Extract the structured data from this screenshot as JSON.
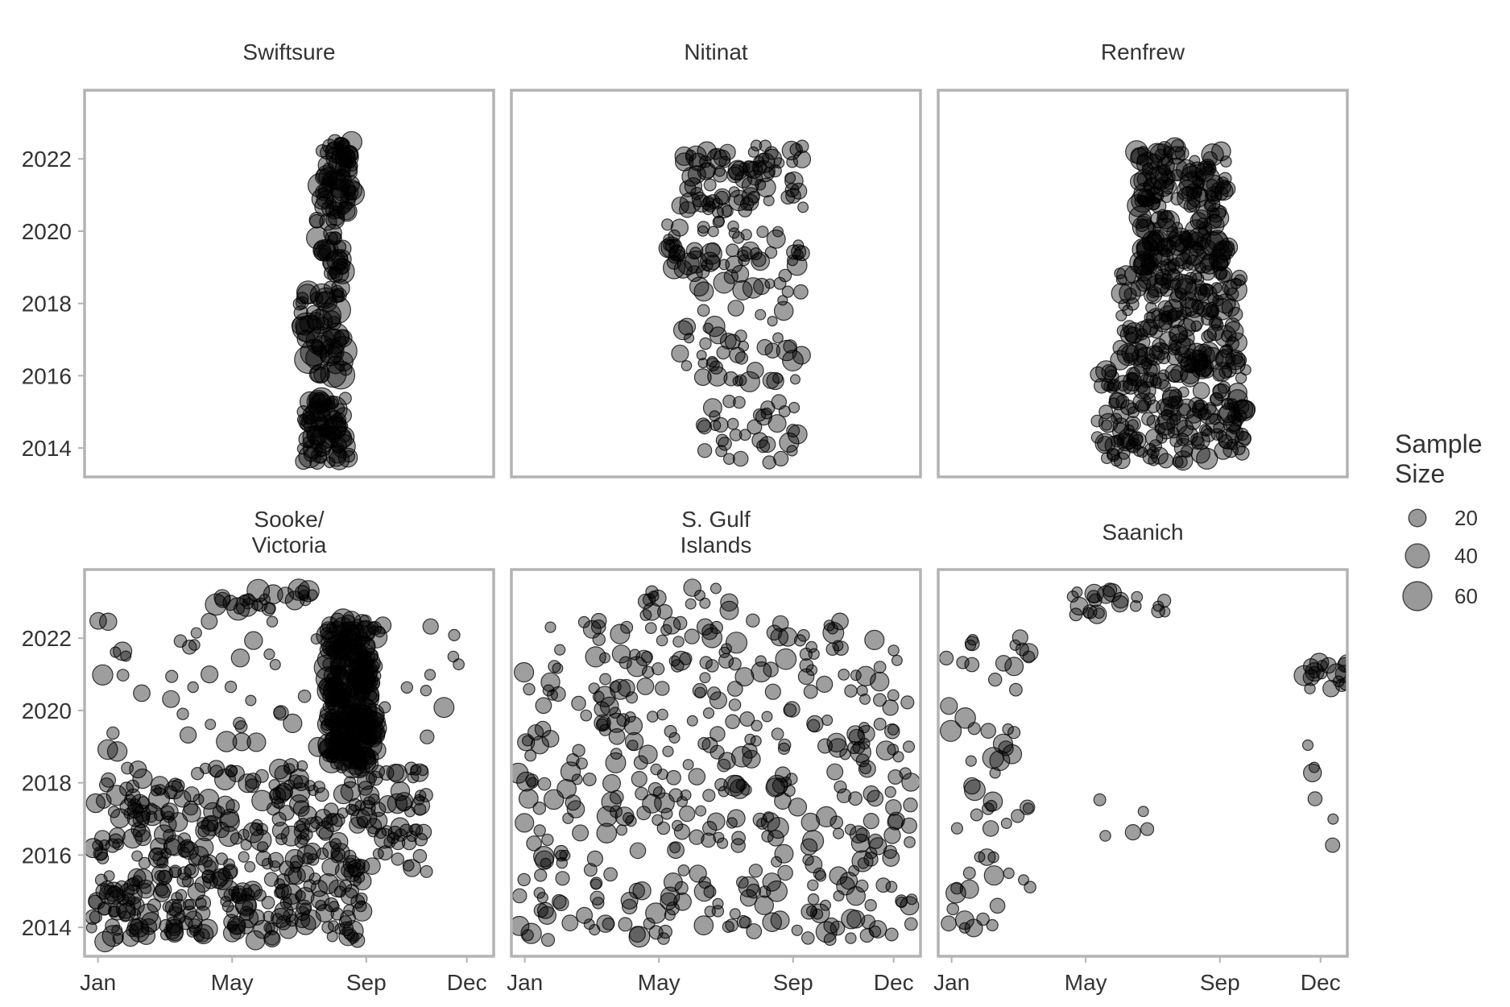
{
  "chart_data": {
    "type": "scatter",
    "x_ticks": [
      "Jan",
      "May",
      "Sep",
      "Dec"
    ],
    "x_tick_months": [
      1,
      5,
      9,
      12
    ],
    "x_range_months": [
      0.6,
      12.8
    ],
    "y_ticks": [
      "2014",
      "2016",
      "2018",
      "2020",
      "2022"
    ],
    "y_range": [
      2013.2,
      2023.9
    ],
    "grid": false,
    "legend": {
      "title_lines": [
        "Sample",
        "Size"
      ],
      "entries": [
        {
          "label": "20",
          "size": 20
        },
        {
          "label": "40",
          "size": 40
        },
        {
          "label": "60",
          "size": 60
        }
      ],
      "position": "right"
    },
    "point_color": "#000000",
    "panels": [
      {
        "title_lines": [
          "Swiftsure"
        ],
        "clusters": [
          {
            "x": [
              7.1,
              8.5
            ],
            "y": [
              2013.6,
              2015.4
            ],
            "n": 70,
            "s": [
              6,
              45
            ]
          },
          {
            "x": [
              7.0,
              8.5
            ],
            "y": [
              2015.9,
              2018.6
            ],
            "n": 55,
            "s": [
              8,
              60
            ]
          },
          {
            "x": [
              7.5,
              8.3
            ],
            "y": [
              2018.8,
              2020.4
            ],
            "n": 30,
            "s": [
              8,
              45
            ]
          },
          {
            "x": [
              7.6,
              8.6
            ],
            "y": [
              2020.5,
              2022.5
            ],
            "n": 75,
            "s": [
              6,
              40
            ]
          }
        ]
      },
      {
        "title_lines": [
          "Nitinat"
        ],
        "clusters": [
          {
            "x": [
              6.3,
              9.3
            ],
            "y": [
              2013.6,
              2015.3
            ],
            "n": 35,
            "s": [
              6,
              25
            ]
          },
          {
            "x": [
              5.6,
              9.3
            ],
            "y": [
              2015.8,
              2018.6
            ],
            "n": 55,
            "s": [
              5,
              30
            ]
          },
          {
            "x": [
              5.2,
              9.3
            ],
            "y": [
              2018.7,
              2020.3
            ],
            "n": 60,
            "s": [
              6,
              35
            ]
          },
          {
            "x": [
              5.6,
              9.3
            ],
            "y": [
              2020.5,
              2022.4
            ],
            "n": 85,
            "s": [
              6,
              30
            ]
          }
        ]
      },
      {
        "title_lines": [
          "Renfrew"
        ],
        "clusters": [
          {
            "x": [
              5.3,
              9.8
            ],
            "y": [
              2013.6,
              2016.2
            ],
            "n": 190,
            "s": [
              6,
              30
            ]
          },
          {
            "x": [
              6.0,
              9.6
            ],
            "y": [
              2016.2,
              2019.0
            ],
            "n": 170,
            "s": [
              6,
              35
            ]
          },
          {
            "x": [
              6.5,
              9.3
            ],
            "y": [
              2019.0,
              2022.4
            ],
            "n": 190,
            "s": [
              6,
              40
            ]
          }
        ]
      },
      {
        "title_lines": [
          "Sooke/",
          "Victoria"
        ],
        "clusters": [
          {
            "x": [
              0.8,
              9.2
            ],
            "y": [
              2013.6,
              2015.5
            ],
            "n": 200,
            "s": [
              6,
              30
            ]
          },
          {
            "x": [
              0.8,
              10.8
            ],
            "y": [
              2015.5,
              2018.5
            ],
            "n": 280,
            "s": [
              6,
              30
            ]
          },
          {
            "x": [
              7.8,
              9.3
            ],
            "y": [
              2018.5,
              2022.5
            ],
            "n": 260,
            "s": [
              6,
              45
            ]
          },
          {
            "x": [
              1.0,
              11.8
            ],
            "y": [
              2018.8,
              2022.5
            ],
            "n": 70,
            "s": [
              6,
              30
            ]
          },
          {
            "x": [
              4.5,
              7.5
            ],
            "y": [
              2022.8,
              2023.4
            ],
            "n": 25,
            "s": [
              6,
              40
            ]
          }
        ]
      },
      {
        "title_lines": [
          "S. Gulf",
          "Islands"
        ],
        "clusters": [
          {
            "x": [
              0.8,
              12.6
            ],
            "y": [
              2013.6,
              2018.5
            ],
            "n": 250,
            "s": [
              6,
              30
            ]
          },
          {
            "x": [
              0.8,
              12.6
            ],
            "y": [
              2018.5,
              2022.5
            ],
            "n": 190,
            "s": [
              6,
              30
            ]
          },
          {
            "x": [
              4.5,
              7.3
            ],
            "y": [
              2022.5,
              2023.4
            ],
            "n": 15,
            "s": [
              6,
              25
            ]
          }
        ]
      },
      {
        "title_lines": [
          "Saanich"
        ],
        "clusters": [
          {
            "x": [
              0.8,
              3.6
            ],
            "y": [
              2013.9,
              2022.4
            ],
            "n": 60,
            "s": [
              6,
              30
            ]
          },
          {
            "x": [
              4.6,
              7.4
            ],
            "y": [
              2022.6,
              2023.4
            ],
            "n": 22,
            "s": [
              6,
              30
            ]
          },
          {
            "x": [
              11.5,
              12.8
            ],
            "y": [
              2020.6,
              2021.4
            ],
            "n": 18,
            "s": [
              6,
              30
            ]
          },
          {
            "x": [
              11.6,
              12.8
            ],
            "y": [
              2015.6,
              2020.0
            ],
            "n": 6,
            "s": [
              6,
              25
            ]
          },
          {
            "x": [
              4.5,
              7.6
            ],
            "y": [
              2016.5,
              2018.0
            ],
            "n": 5,
            "s": [
              6,
              15
            ]
          }
        ]
      }
    ]
  }
}
